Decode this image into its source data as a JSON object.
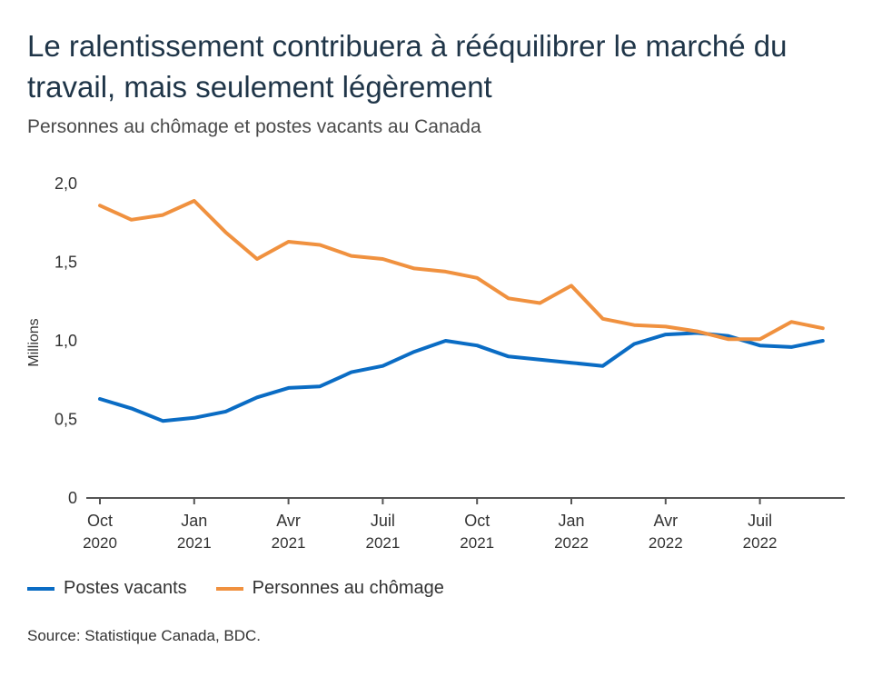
{
  "title": "Le ralentissement contribuera à rééquilibrer le marché du travail, mais seulement légèrement",
  "subtitle": "Personnes au chômage et postes vacants au Canada",
  "source": "Source: Statistique Canada, BDC.",
  "legend": [
    {
      "name": "Postes vacants",
      "color": "#0a6cc4"
    },
    {
      "name": "Personnes au chômage",
      "color": "#f0913f"
    }
  ],
  "chart_data": {
    "type": "line",
    "ylabel": "Millions",
    "ylim": [
      0,
      2.0
    ],
    "yticks": [
      "0",
      "0,5",
      "1,0",
      "1,5",
      "2,0"
    ],
    "xticks": [
      {
        "month": "Oct",
        "year": "2020"
      },
      {
        "month": "Jan",
        "year": "2021"
      },
      {
        "month": "Avr",
        "year": "2021"
      },
      {
        "month": "Juil",
        "year": "2021"
      },
      {
        "month": "Oct",
        "year": "2021"
      },
      {
        "month": "Jan",
        "year": "2022"
      },
      {
        "month": "Avr",
        "year": "2022"
      },
      {
        "month": "Juil",
        "year": "2022"
      }
    ],
    "x": [
      "2020-10",
      "2020-11",
      "2020-12",
      "2021-01",
      "2021-02",
      "2021-03",
      "2021-04",
      "2021-05",
      "2021-06",
      "2021-07",
      "2021-08",
      "2021-09",
      "2021-10",
      "2021-11",
      "2021-12",
      "2022-01",
      "2022-02",
      "2022-03",
      "2022-04",
      "2022-05",
      "2022-06",
      "2022-07",
      "2022-08",
      "2022-09"
    ],
    "series": [
      {
        "name": "Postes vacants",
        "color": "#0a6cc4",
        "values": [
          0.63,
          0.57,
          0.49,
          0.51,
          0.55,
          0.64,
          0.7,
          0.71,
          0.8,
          0.84,
          0.93,
          1.0,
          0.97,
          0.9,
          0.88,
          0.86,
          0.84,
          0.98,
          1.04,
          1.05,
          1.03,
          0.97,
          0.96,
          1.0
        ]
      },
      {
        "name": "Personnes au chômage",
        "color": "#f0913f",
        "values": [
          1.86,
          1.77,
          1.8,
          1.89,
          1.69,
          1.52,
          1.63,
          1.61,
          1.54,
          1.52,
          1.46,
          1.44,
          1.4,
          1.27,
          1.24,
          1.35,
          1.14,
          1.1,
          1.09,
          1.06,
          1.01,
          1.01,
          1.12,
          1.08
        ]
      }
    ]
  }
}
